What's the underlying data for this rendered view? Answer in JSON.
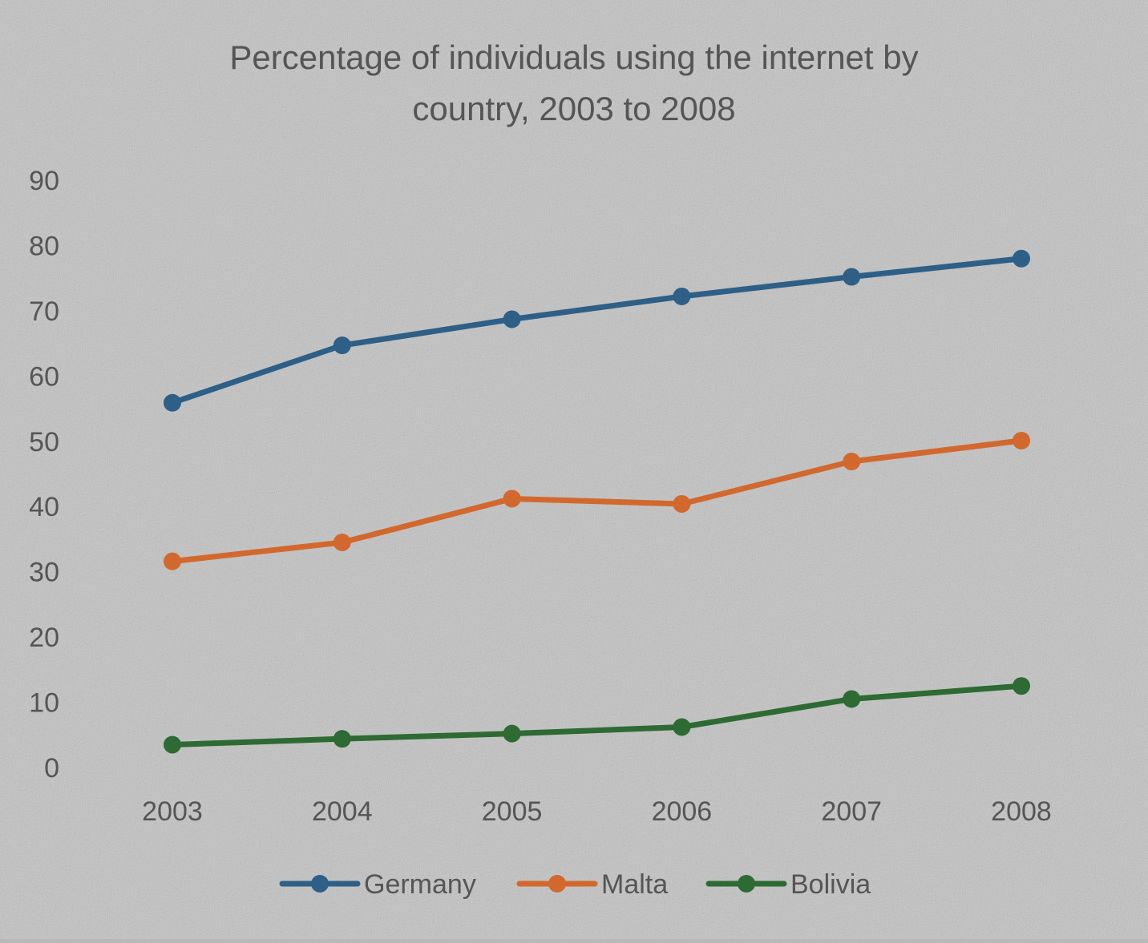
{
  "chart_data": {
    "type": "line",
    "title": "Percentage of individuals using the internet by country, 2003 to 2008",
    "title_lines": [
      "Percentage of individuals using the internet by",
      "country, 2003 to 2008"
    ],
    "xlabel": "",
    "ylabel": "",
    "categories": [
      "2003",
      "2004",
      "2005",
      "2006",
      "2007",
      "2008"
    ],
    "y_ticks": [
      "0",
      "10",
      "20",
      "30",
      "40",
      "50",
      "60",
      "70",
      "80",
      "90"
    ],
    "ylim": [
      0,
      90
    ],
    "grid": false,
    "legend_position": "bottom",
    "series": [
      {
        "name": "Germany",
        "color": "#2e5f87",
        "values": [
          55.9,
          64.7,
          68.7,
          72.2,
          75.2,
          78.0
        ]
      },
      {
        "name": "Malta",
        "color": "#d2682e",
        "values": [
          31.6,
          34.5,
          41.2,
          40.4,
          46.9,
          50.1
        ]
      },
      {
        "name": "Bolivia",
        "color": "#2e6a33",
        "values": [
          3.5,
          4.4,
          5.2,
          6.2,
          10.5,
          12.5
        ]
      }
    ]
  }
}
